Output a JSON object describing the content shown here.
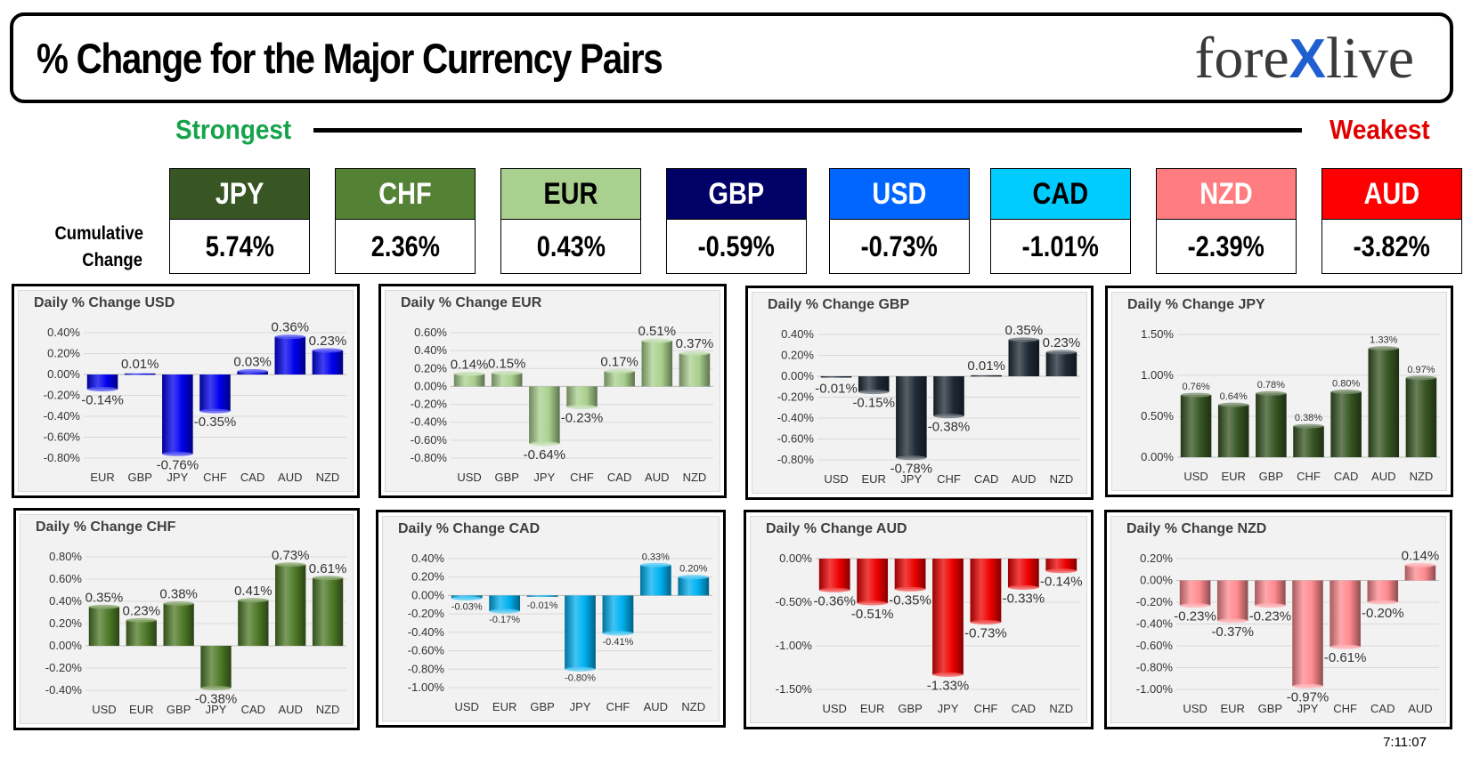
{
  "header": {
    "title": "% Change for the Major Currency Pairs",
    "logo_left": "fore",
    "logo_x": "X",
    "logo_right": "live"
  },
  "ranking": {
    "strongest": "Strongest",
    "weakest": "Weakest"
  },
  "cumulative": {
    "label_line1": "Cumulative",
    "label_line2": "Change",
    "currencies": [
      {
        "code": "JPY",
        "value": "5.74%",
        "color": "#375623",
        "text_color": "#ffffff"
      },
      {
        "code": "CHF",
        "value": "2.36%",
        "color": "#548235",
        "text_color": "#ffffff"
      },
      {
        "code": "EUR",
        "value": "0.43%",
        "color": "#a9d08e",
        "text_color": "#000000"
      },
      {
        "code": "GBP",
        "value": "-0.59%",
        "color": "#000066",
        "text_color": "#ffffff"
      },
      {
        "code": "USD",
        "value": "-0.73%",
        "color": "#0066ff",
        "text_color": "#ffffff"
      },
      {
        "code": "CAD",
        "value": "-1.01%",
        "color": "#00ccff",
        "text_color": "#000000"
      },
      {
        "code": "NZD",
        "value": "-2.39%",
        "color": "#ff7c80",
        "text_color": "#ffffff"
      },
      {
        "code": "AUD",
        "value": "-3.82%",
        "color": "#ff0000",
        "text_color": "#ffffff"
      }
    ]
  },
  "chart_data": [
    {
      "type": "bar",
      "title": "Daily % Change USD",
      "categories": [
        "EUR",
        "GBP",
        "JPY",
        "CHF",
        "CAD",
        "AUD",
        "NZD"
      ],
      "values": [
        -0.14,
        0.01,
        -0.76,
        -0.35,
        0.03,
        0.36,
        0.23
      ],
      "labels": [
        "-0.14%",
        "0.01%",
        "-0.76%",
        "-0.35%",
        "0.03%",
        "0.36%",
        "0.23%"
      ],
      "ylim": [
        -0.8,
        0.4
      ],
      "yticks": [
        0.4,
        0.2,
        0,
        -0.2,
        -0.4,
        -0.6,
        -0.8
      ],
      "decimals": 2,
      "color": "#0000ee",
      "label_size": 15
    },
    {
      "type": "bar",
      "title": "Daily % Change EUR",
      "categories": [
        "USD",
        "GBP",
        "JPY",
        "CHF",
        "CAD",
        "AUD",
        "NZD"
      ],
      "values": [
        0.14,
        0.15,
        -0.64,
        -0.23,
        0.17,
        0.51,
        0.37
      ],
      "labels": [
        "0.14%",
        "0.15%",
        "-0.64%",
        "-0.23%",
        "0.17%",
        "0.51%",
        "0.37%"
      ],
      "ylim": [
        -0.8,
        0.6
      ],
      "yticks": [
        0.6,
        0.4,
        0.2,
        0,
        -0.2,
        -0.4,
        -0.6,
        -0.8
      ],
      "decimals": 2,
      "color": "#a9d08e",
      "label_size": 15
    },
    {
      "type": "bar",
      "title": "Daily % Change GBP",
      "categories": [
        "USD",
        "EUR",
        "JPY",
        "CHF",
        "CAD",
        "AUD",
        "NZD"
      ],
      "values": [
        -0.01,
        -0.15,
        -0.78,
        -0.38,
        0.01,
        0.35,
        0.23
      ],
      "labels": [
        "-0.01%",
        "-0.15%",
        "-0.78%",
        "-0.38%",
        "0.01%",
        "0.35%",
        "0.23%"
      ],
      "ylim": [
        -0.8,
        0.4
      ],
      "yticks": [
        0.4,
        0.2,
        0,
        -0.2,
        -0.4,
        -0.6,
        -0.8
      ],
      "decimals": 2,
      "color": "#1f2a36",
      "label_size": 15
    },
    {
      "type": "bar",
      "title": "Daily % Change JPY",
      "categories": [
        "USD",
        "EUR",
        "GBP",
        "CHF",
        "CAD",
        "AUD",
        "NZD"
      ],
      "values": [
        0.76,
        0.64,
        0.78,
        0.38,
        0.8,
        1.33,
        0.97
      ],
      "labels": [
        "0.76%",
        "0.64%",
        "0.78%",
        "0.38%",
        "0.80%",
        "1.33%",
        "0.97%"
      ],
      "ylim": [
        0,
        1.5
      ],
      "yticks": [
        1.5,
        1.0,
        0.5,
        0
      ],
      "decimals": 2,
      "color": "#375623",
      "label_size": 11
    },
    {
      "type": "bar",
      "title": "Daily % Change CHF",
      "categories": [
        "USD",
        "EUR",
        "GBP",
        "JPY",
        "CAD",
        "AUD",
        "NZD"
      ],
      "values": [
        0.35,
        0.23,
        0.38,
        -0.38,
        0.41,
        0.73,
        0.61
      ],
      "labels": [
        "0.35%",
        "0.23%",
        "0.38%",
        "-0.38%",
        "0.41%",
        "0.73%",
        "0.61%"
      ],
      "ylim": [
        -0.4,
        0.8
      ],
      "yticks": [
        0.8,
        0.6,
        0.4,
        0.2,
        0,
        -0.2,
        -0.4
      ],
      "decimals": 2,
      "color": "#4f7a28",
      "label_size": 15
    },
    {
      "type": "bar",
      "title": "Daily % Change CAD",
      "categories": [
        "USD",
        "EUR",
        "GBP",
        "JPY",
        "CHF",
        "AUD",
        "NZD"
      ],
      "values": [
        -0.03,
        -0.17,
        -0.01,
        -0.8,
        -0.41,
        0.33,
        0.2
      ],
      "labels": [
        "-0.03%",
        "-0.17%",
        "-0.01%",
        "-0.80%",
        "-0.41%",
        "0.33%",
        "0.20%"
      ],
      "ylim": [
        -1.0,
        0.4
      ],
      "yticks": [
        0.4,
        0.2,
        0,
        -0.2,
        -0.4,
        -0.6,
        -0.8,
        -1.0
      ],
      "decimals": 2,
      "color": "#00b0f0",
      "label_size": 11
    },
    {
      "type": "bar",
      "title": "Daily % Change AUD",
      "categories": [
        "USD",
        "EUR",
        "GBP",
        "JPY",
        "CHF",
        "CAD",
        "NZD"
      ],
      "values": [
        -0.36,
        -0.51,
        -0.35,
        -1.33,
        -0.73,
        -0.33,
        -0.14
      ],
      "labels": [
        "-0.36%",
        "-0.51%",
        "-0.35%",
        "-1.33%",
        "-0.73%",
        "-0.33%",
        "-0.14%"
      ],
      "ylim": [
        -1.5,
        0
      ],
      "yticks": [
        0,
        -0.5,
        -1.0,
        -1.5
      ],
      "decimals": 2,
      "color": "#ee0000",
      "label_size": 15
    },
    {
      "type": "bar",
      "title": "Daily % Change NZD",
      "categories": [
        "USD",
        "EUR",
        "GBP",
        "JPY",
        "CHF",
        "CAD",
        "AUD"
      ],
      "values": [
        -0.23,
        -0.37,
        -0.23,
        -0.97,
        -0.61,
        -0.2,
        0.14
      ],
      "labels": [
        "-0.23%",
        "-0.37%",
        "-0.23%",
        "-0.97%",
        "-0.61%",
        "-0.20%",
        "0.14%"
      ],
      "ylim": [
        -1.0,
        0.2
      ],
      "yticks": [
        0.2,
        0,
        -0.2,
        -0.4,
        -0.6,
        -0.8,
        -1.0
      ],
      "decimals": 2,
      "color": "#ff8a8f",
      "label_size": 15
    }
  ],
  "timestamp": "7:11:07"
}
